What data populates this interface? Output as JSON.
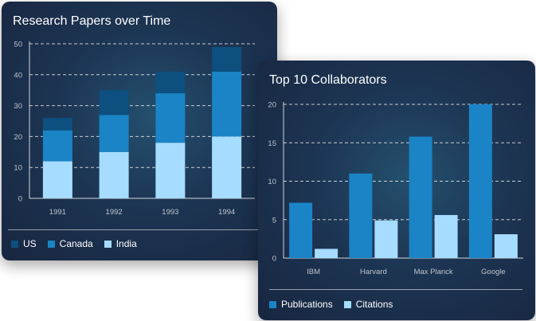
{
  "chart_data": [
    {
      "type": "bar",
      "stacked": true,
      "title": "Research Papers over Time",
      "categories": [
        "1991",
        "1992",
        "1993",
        "1994"
      ],
      "series": [
        {
          "name": "India",
          "color": "#a6dcff",
          "values": [
            12,
            15,
            18,
            20
          ]
        },
        {
          "name": "Canada",
          "color": "#1a84c6",
          "values": [
            10,
            12,
            16,
            21
          ]
        },
        {
          "name": "US",
          "color": "#0d4f7e",
          "values": [
            4,
            8,
            7,
            8
          ]
        }
      ],
      "ylim": [
        0,
        50
      ],
      "yticks": [
        0,
        10,
        20,
        30,
        40,
        50
      ],
      "grid": true,
      "legend": {
        "placement": "bottom-left",
        "order": [
          "US",
          "Canada",
          "India"
        ]
      }
    },
    {
      "type": "bar",
      "title": "Top 10 Collaborators",
      "categories": [
        "IBM",
        "Harvard",
        "Max Planck",
        "Google"
      ],
      "series": [
        {
          "name": "Publications",
          "color": "#1a84c6",
          "values": [
            7.2,
            11,
            15.8,
            20
          ]
        },
        {
          "name": "Citations",
          "color": "#a6dcff",
          "values": [
            1.2,
            4.9,
            5.6,
            3.1
          ]
        }
      ],
      "ylim": [
        0,
        20
      ],
      "yticks": [
        0,
        5,
        10,
        15,
        20
      ],
      "grid": true,
      "legend": {
        "placement": "bottom-left",
        "order": [
          "Publications",
          "Citations"
        ]
      }
    }
  ]
}
